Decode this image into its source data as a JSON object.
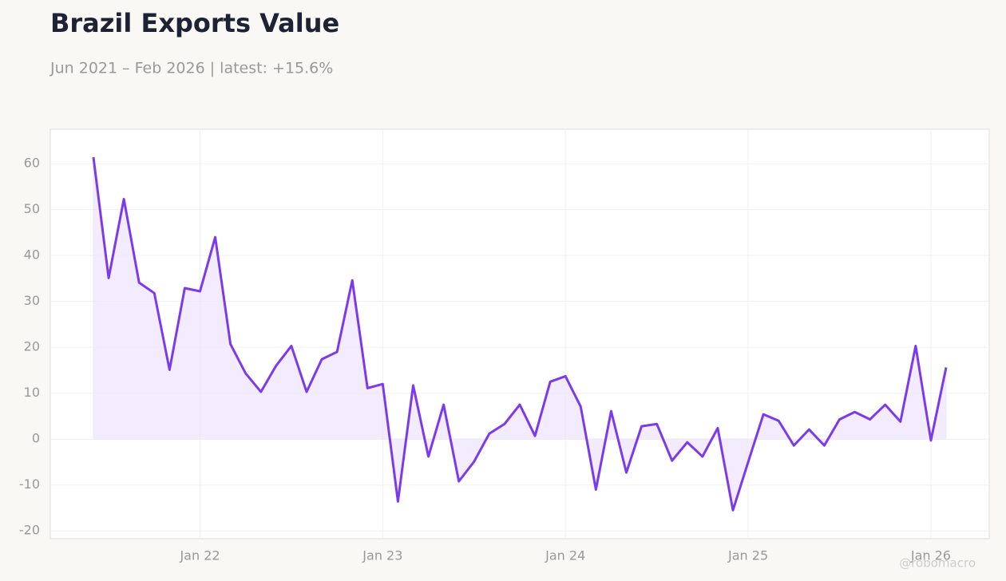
{
  "chart_data": {
    "type": "line",
    "title": "Brazil Exports Value",
    "subtitle": "Jun 2021 – Feb 2026 | latest: +15.6%",
    "watermark": "@robomacro",
    "x": [
      "2021-06",
      "2021-07",
      "2021-08",
      "2021-09",
      "2021-10",
      "2021-11",
      "2021-12",
      "2022-01",
      "2022-02",
      "2022-03",
      "2022-04",
      "2022-05",
      "2022-06",
      "2022-07",
      "2022-08",
      "2022-09",
      "2022-10",
      "2022-11",
      "2022-12",
      "2023-01",
      "2023-02",
      "2023-03",
      "2023-04",
      "2023-05",
      "2023-06",
      "2023-07",
      "2023-08",
      "2023-09",
      "2023-10",
      "2023-11",
      "2023-12",
      "2024-01",
      "2024-02",
      "2024-03",
      "2024-04",
      "2024-05",
      "2024-06",
      "2024-07",
      "2024-08",
      "2024-09",
      "2024-10",
      "2024-11",
      "2024-12",
      "2025-01",
      "2025-02",
      "2025-03",
      "2025-04",
      "2025-05",
      "2025-06",
      "2025-07",
      "2025-08",
      "2025-09",
      "2025-10",
      "2025-11",
      "2025-12",
      "2026-01",
      "2026-02"
    ],
    "series": [
      {
        "name": "Brazil Exports Value",
        "color": "#7c3aed",
        "values": [
          61.4,
          35.1,
          52.3,
          34.1,
          31.8,
          15.1,
          32.9,
          32.2,
          44.0,
          20.7,
          14.3,
          10.3,
          16.0,
          20.3,
          10.3,
          17.4,
          19.0,
          34.6,
          11.1,
          12.0,
          -13.6,
          11.7,
          -3.8,
          7.5,
          -9.2,
          -4.9,
          1.2,
          3.3,
          7.5,
          0.7,
          12.5,
          13.7,
          7.1,
          -11.0,
          6.1,
          -7.3,
          2.8,
          3.3,
          -4.7,
          -0.7,
          -3.8,
          2.4,
          -15.5,
          -5.0,
          5.4,
          4.0,
          -1.4,
          2.1,
          -1.4,
          4.3,
          5.9,
          4.3,
          7.5,
          3.8,
          20.3,
          -0.3,
          15.6
        ]
      }
    ],
    "ylim": [
      -21.7,
      67.5
    ],
    "yticks": [
      -20,
      -10,
      0,
      10,
      20,
      30,
      40,
      50,
      60
    ],
    "xticks": [
      {
        "value": "2022-01",
        "label": "Jan 22"
      },
      {
        "value": "2023-01",
        "label": "Jan 23"
      },
      {
        "value": "2024-01",
        "label": "Jan 24"
      },
      {
        "value": "2025-01",
        "label": "Jan 25"
      },
      {
        "value": "2026-01",
        "label": "Jan 26"
      }
    ],
    "grid": true,
    "area_fill": "#ede4fd"
  }
}
